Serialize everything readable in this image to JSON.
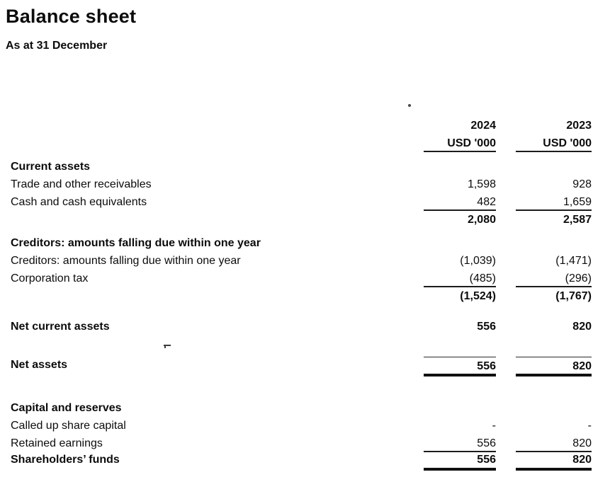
{
  "document": {
    "title": "Balance sheet",
    "subtitle": "As at 31 December",
    "ink_color": "#0c0c0c",
    "background_color": "#ffffff"
  },
  "table": {
    "columns": {
      "year1": "2024",
      "year2": "2023",
      "unit1": "USD '000",
      "unit2": "USD '000"
    },
    "rows": [
      {
        "label": "Current assets"
      },
      {
        "label": "Trade and other receivables",
        "v1": "1,598",
        "v2": "928"
      },
      {
        "label": "Cash and cash equivalents",
        "v1": "482",
        "v2": "1,659"
      },
      {
        "label": "",
        "v1": "2,080",
        "v2": "2,587"
      },
      {
        "label": "Creditors: amounts falling due within one year"
      },
      {
        "label": "Creditors: amounts falling due within one year",
        "v1": "(1,039)",
        "v2": "(1,471)"
      },
      {
        "label": "Corporation tax",
        "v1": "(485)",
        "v2": "(296)"
      },
      {
        "label": "",
        "v1": "(1,524)",
        "v2": "(1,767)"
      },
      {
        "label": "Net current assets",
        "v1": "556",
        "v2": "820"
      },
      {
        "label": "Net assets",
        "v1": "556",
        "v2": "820"
      },
      {
        "label": "Capital and reserves"
      },
      {
        "label": "Called up share capital",
        "v1": "-",
        "v2": "-"
      },
      {
        "label": "Retained earnings",
        "v1": "556",
        "v2": "820"
      },
      {
        "label": "Shareholders’ funds",
        "v1": "556",
        "v2": "820"
      }
    ]
  }
}
